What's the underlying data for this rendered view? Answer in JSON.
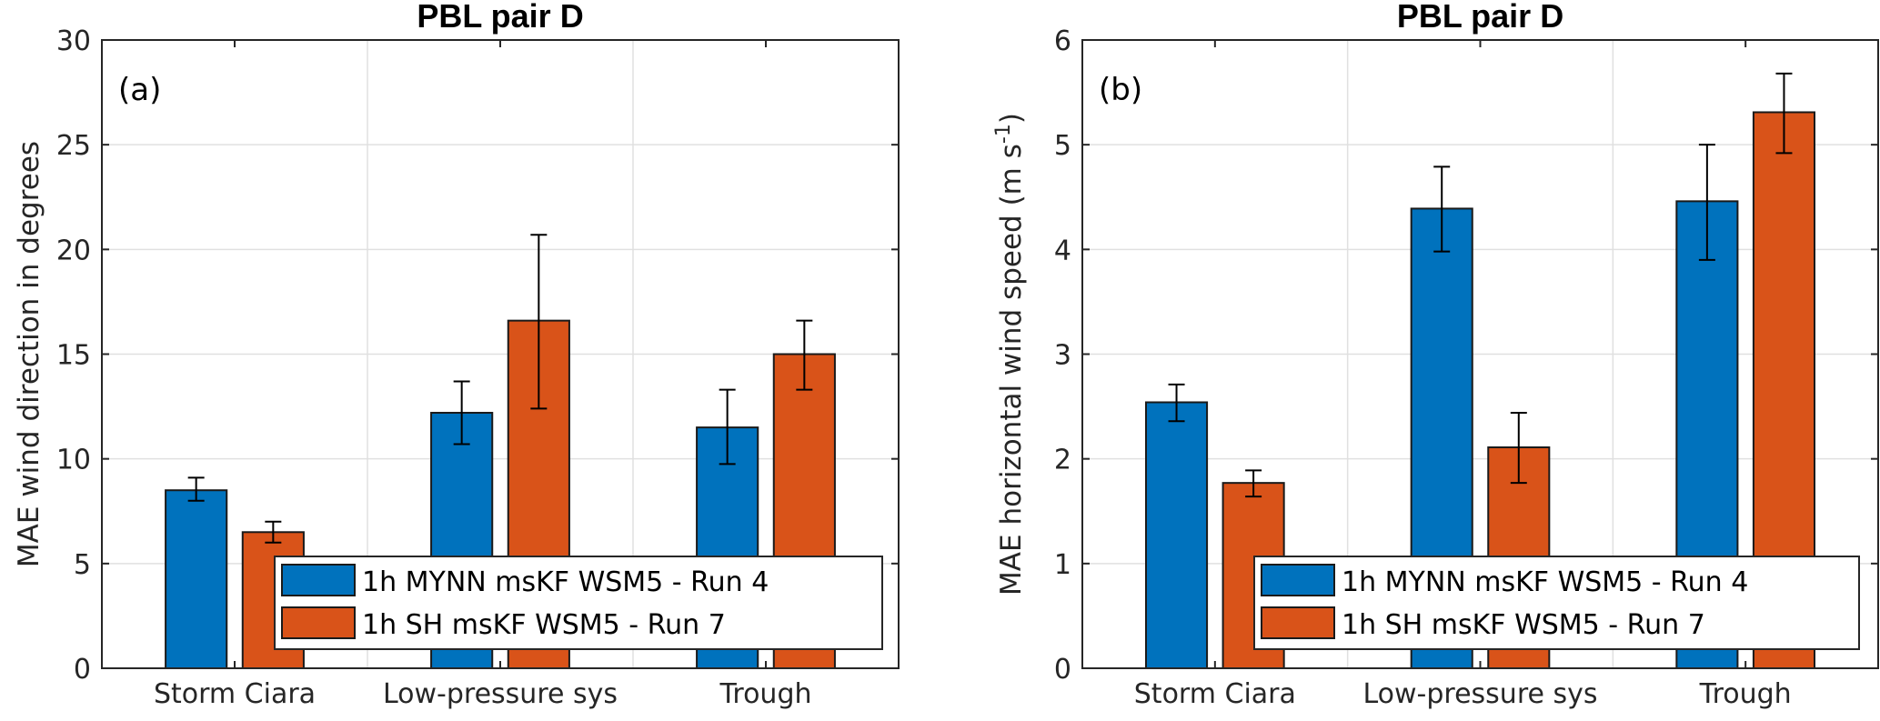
{
  "chart_data": [
    {
      "type": "bar",
      "panel_label": "(a)",
      "title": "PBL pair D",
      "xlabel": "",
      "ylabel": "MAE wind direction in degrees",
      "ylim": [
        0,
        30
      ],
      "yticks": [
        0,
        5,
        10,
        15,
        20,
        25,
        30
      ],
      "grid": true,
      "legend_position": "bottom-right",
      "categories": [
        "Storm Ciara",
        "Low-pressure sys",
        "Trough"
      ],
      "series": [
        {
          "name": "1h MYNN msKF WSM5 - Run 4",
          "color": "#0072BD",
          "values": [
            8.5,
            12.2,
            11.5
          ],
          "err_low": [
            8.0,
            10.7,
            9.75
          ],
          "err_high": [
            9.1,
            13.7,
            13.3
          ]
        },
        {
          "name": "1h SH msKF WSM5 - Run 7",
          "color": "#D95319",
          "values": [
            6.5,
            16.6,
            15.0
          ],
          "err_low": [
            6.0,
            12.4,
            13.3
          ],
          "err_high": [
            7.0,
            20.7,
            16.6
          ]
        }
      ]
    },
    {
      "type": "bar",
      "panel_label": "(b)",
      "title": "PBL pair D",
      "xlabel": "",
      "ylabel": "MAE horizontal wind speed (m s",
      "ylabel_sup": "-1",
      "ylabel_end": ")",
      "ylim": [
        0,
        6
      ],
      "yticks": [
        0,
        1,
        2,
        3,
        4,
        5,
        6
      ],
      "grid": true,
      "legend_position": "bottom-right",
      "categories": [
        "Storm Ciara",
        "Low-pressure sys",
        "Trough"
      ],
      "series": [
        {
          "name": "1h MYNN msKF WSM5 - Run 4",
          "color": "#0072BD",
          "values": [
            2.54,
            4.39,
            4.46
          ],
          "err_low": [
            2.36,
            3.98,
            3.9
          ],
          "err_high": [
            2.71,
            4.79,
            5.0
          ]
        },
        {
          "name": "1h SH msKF WSM5 - Run 7",
          "color": "#D95319",
          "values": [
            1.77,
            2.11,
            5.31
          ],
          "err_low": [
            1.64,
            1.77,
            4.92
          ],
          "err_high": [
            1.89,
            2.44,
            5.68
          ]
        }
      ]
    }
  ]
}
